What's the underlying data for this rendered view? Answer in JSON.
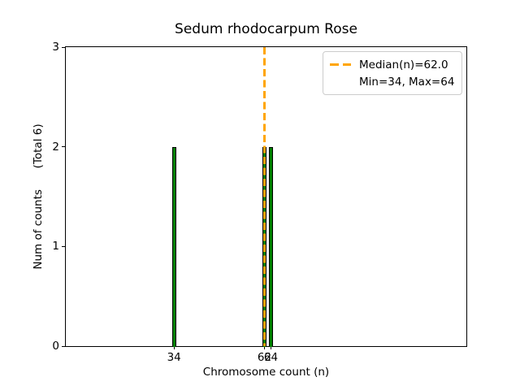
{
  "figure": {
    "title": "Sedum rhodocarpum Rose",
    "xlabel": "Chromosome count (n)",
    "ylabel": "Num of counts      (Total 6)"
  },
  "legend": {
    "position": "upper right",
    "entries": [
      {
        "label": "Median(n)=62.0",
        "marker": "orange-dashed-line"
      },
      {
        "label": "Min=34, Max=64",
        "marker": "none"
      }
    ]
  },
  "chart_data": {
    "type": "bar",
    "title": "Sedum rhodocarpum Rose",
    "xlabel": "Chromosome count (n)",
    "ylabel": "Num of counts      (Total 6)",
    "x": [
      34,
      62,
      64
    ],
    "values": [
      2,
      2,
      2
    ],
    "total_counts": 6,
    "median": 62.0,
    "min": 34,
    "max": 64,
    "bar_width": 0.8,
    "xlim": [
      0.5,
      124.5
    ],
    "ylim": [
      0,
      3
    ],
    "xticks": [
      34,
      62,
      64
    ],
    "yticks": [
      0,
      1,
      2,
      3
    ],
    "grid": false,
    "legend_position": "upper right",
    "colors": {
      "bar_fill": "#008000",
      "bar_edge": "#000000",
      "median_line": "#FFA500",
      "legend_border": "#cccccc",
      "background": "#ffffff"
    }
  }
}
